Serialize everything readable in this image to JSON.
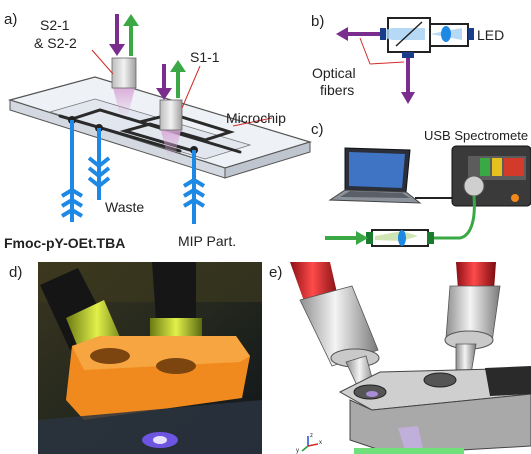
{
  "panel_a": {
    "letter": "a)",
    "s2_label_line1": "S2-1",
    "s2_label_line2": "& S2-2",
    "s1_label": "S1-1",
    "microchip_label": "Microchip",
    "waste_label": "Waste",
    "fmoc_label": "Fmoc-pY-OEt.TBA",
    "mip_label": "MIP Part."
  },
  "panel_b": {
    "letter": "b)",
    "led_label": "LED",
    "fibers_line1": "Optical",
    "fibers_line2": "fibers"
  },
  "panel_c": {
    "letter": "c)",
    "spectrometer_label": "USB Spectromete"
  },
  "panel_d": {
    "letter": "d)"
  },
  "panel_e": {
    "letter": "e)",
    "axis_z": "z",
    "axis_x": "x",
    "axis_y": "y"
  },
  "colors": {
    "fluid_blue": "#1e88e5",
    "fiber_purple": "#7b2d8e",
    "fiber_green": "#3aa845",
    "orange_holder": "#f08a1e",
    "red_fiber": "#d81f26"
  }
}
